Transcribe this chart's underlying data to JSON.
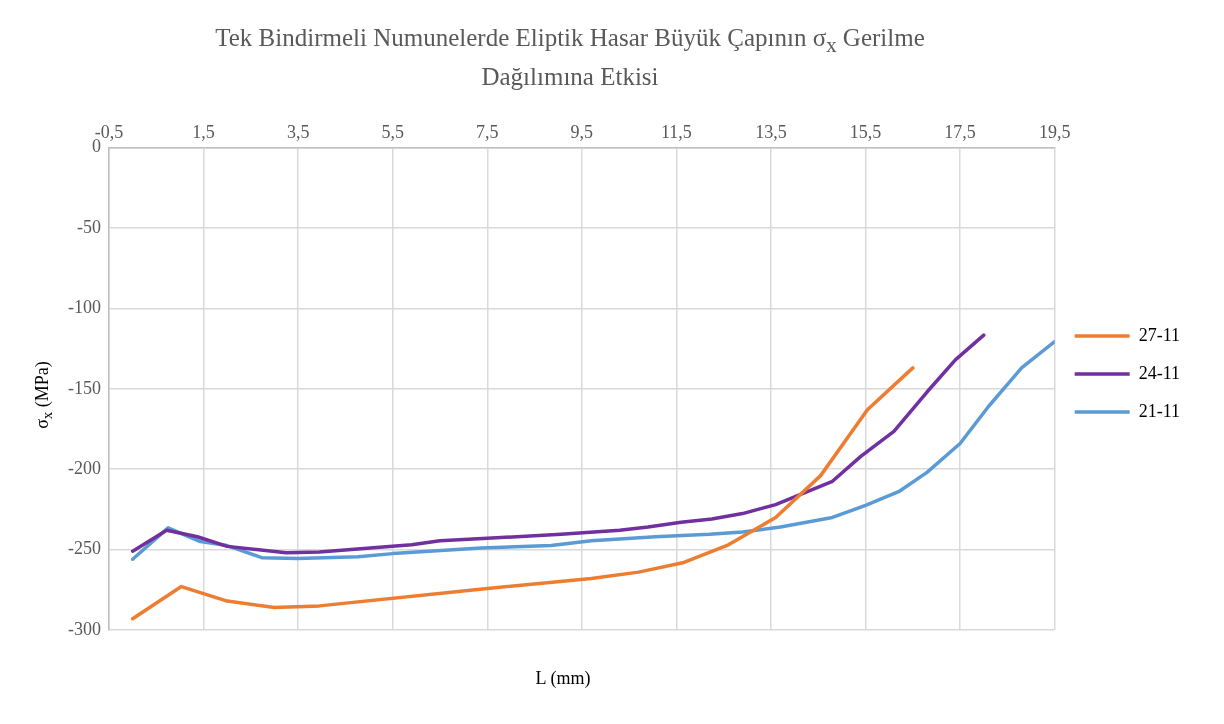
{
  "chart_data": {
    "type": "line",
    "title": "Tek Bindirmeli Numunelerde Eliptik Hasar Büyük Çapının σ$_{x}$ Gerilme Dağılımına Etkisi",
    "xlabel": "L (mm)",
    "ylabel": "σ$_{x}$ (MPa)",
    "xlim": [
      -0.5,
      19.5
    ],
    "xticks": [
      {
        "value": -0.5,
        "label": "-0,5"
      },
      {
        "value": 1.5,
        "label": "1,5"
      },
      {
        "value": 3.5,
        "label": "3,5"
      },
      {
        "value": 5.5,
        "label": "5,5"
      },
      {
        "value": 7.5,
        "label": "7,5"
      },
      {
        "value": 9.5,
        "label": "9,5"
      },
      {
        "value": 11.5,
        "label": "11,5"
      },
      {
        "value": 13.5,
        "label": "13,5"
      },
      {
        "value": 15.5,
        "label": "15,5"
      },
      {
        "value": 17.5,
        "label": "17,5"
      },
      {
        "value": 19.5,
        "label": "19,5"
      }
    ],
    "ylim": [
      -300,
      0
    ],
    "yticks": [
      -300,
      -250,
      -200,
      -150,
      -100,
      -50,
      0
    ],
    "grid": true,
    "legend": "right",
    "marker": "none",
    "line_style": "solid",
    "series": [
      {
        "name": "27-11",
        "color": "#ed7d31",
        "x": [
          0,
          1.03,
          2,
          3,
          3.95,
          7.4,
          9.7,
          10.7,
          11.66,
          12.6,
          13.6,
          14.55,
          15.54,
          16.5
        ],
        "values": [
          -293,
          -273,
          -282,
          -286,
          -285,
          -274.5,
          -268,
          -264,
          -258,
          -247,
          -230,
          -204,
          -163,
          -137
        ]
      },
      {
        "name": "24-11",
        "color": "#7030a0",
        "x": [
          0,
          0.72,
          1.37,
          2,
          3.25,
          3.95,
          5.9,
          6.5,
          7.5,
          9.06,
          10.3,
          10.9,
          11.6,
          12.25,
          12.9,
          13.6,
          14.1,
          14.8,
          15.4,
          16.1,
          16.8,
          17.4,
          18
        ],
        "values": [
          -251,
          -238,
          -242,
          -248,
          -252,
          -251.5,
          -247,
          -244.5,
          -243,
          -240.5,
          -238,
          -236,
          -233,
          -231,
          -227.6,
          -222,
          -216,
          -207.5,
          -192,
          -176.5,
          -152,
          -132,
          -116.6
        ]
      },
      {
        "name": "21-11",
        "color": "#5b9bd5",
        "x": [
          0,
          0.75,
          1.43,
          2,
          2.73,
          3.5,
          4.77,
          5.5,
          7.37,
          8.85,
          9.7,
          11.06,
          12.2,
          12.9,
          13.7,
          14.8,
          15.5,
          16.2,
          16.8,
          17.5,
          18.1,
          18.8,
          19.5
        ],
        "values": [
          -256,
          -236.5,
          -245,
          -247.5,
          -255,
          -255.5,
          -254.5,
          -252.5,
          -249,
          -247.5,
          -244.5,
          -242,
          -240.5,
          -239,
          -236,
          -230,
          -222.5,
          -214,
          -202,
          -184,
          -161,
          -137,
          -120.6
        ]
      }
    ]
  }
}
